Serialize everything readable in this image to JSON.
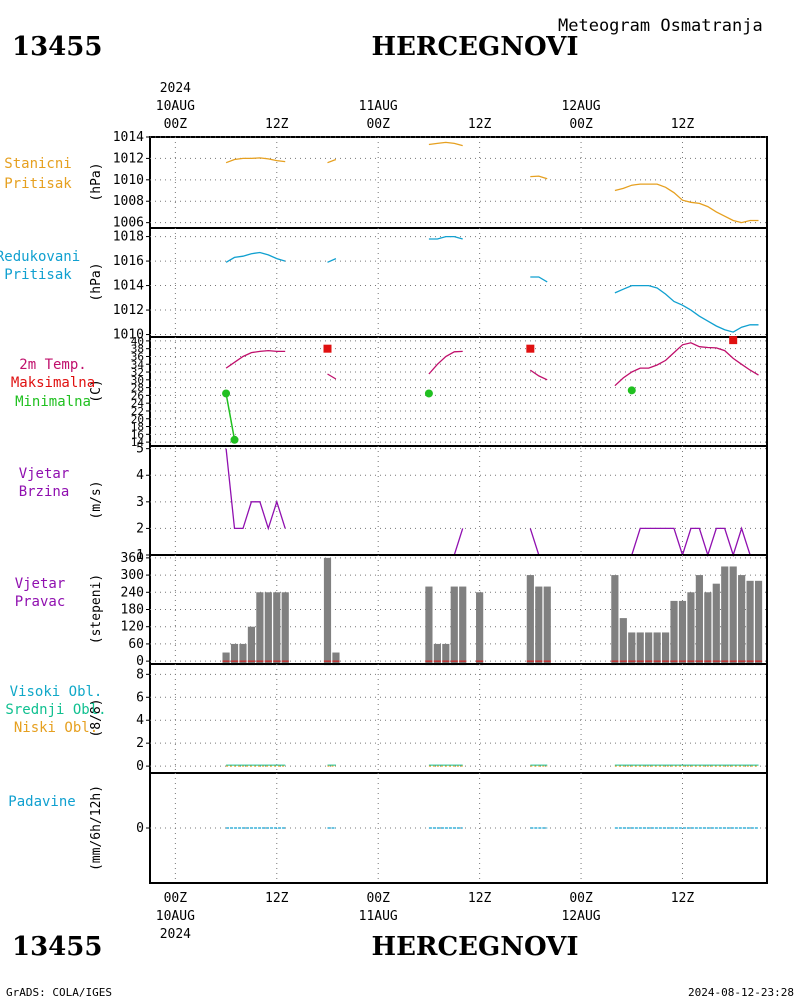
{
  "header": {
    "station_id": "13455",
    "station_name": "HERCEGNOVI",
    "chart_title": "Meteogram Osmatranja"
  },
  "footer": {
    "credit": "GrADS: COLA/IGES",
    "timestamp": "2024-08-12-23:28"
  },
  "time_axis": {
    "top_year": "2024",
    "bottom_year": "2024",
    "dates": [
      "10AUG",
      "11AUG",
      "12AUG"
    ],
    "hour_labels": [
      "00Z",
      "12Z",
      "00Z",
      "12Z",
      "00Z",
      "12Z"
    ],
    "range_hours": [
      -3,
      70
    ]
  },
  "colors": {
    "pressure_station": "#e6a020",
    "pressure_reduced": "#10a0d0",
    "temp_line": "#c0106c",
    "temp_max": "#e01010",
    "temp_min": "#20c020",
    "wind": "#9010b0",
    "wind_dir_bar": "#808080",
    "clouds_high": "#10a8c8",
    "clouds_mid": "#10c090",
    "clouds_low": "#e6a020",
    "precip": "#10a0d0"
  },
  "chart_data": [
    {
      "type": "line",
      "panel": "station_pressure",
      "label_lines": [
        "Stanicni",
        "Pritisak"
      ],
      "ylabel": "(hPa)",
      "ylim": [
        1005.5,
        1014
      ],
      "yticks": [
        1006,
        1008,
        1010,
        1012,
        1014
      ],
      "segments": [
        {
          "x": [
            6,
            7,
            8,
            9,
            10,
            11,
            12,
            13
          ],
          "y": [
            1011.6,
            1011.9,
            1012,
            1012,
            1012.05,
            1011.95,
            1011.8,
            1011.7
          ]
        },
        {
          "x": [
            18,
            19
          ],
          "y": [
            1011.6,
            1011.9
          ]
        },
        {
          "x": [
            30,
            31,
            32,
            33,
            34
          ],
          "y": [
            1013.3,
            1013.4,
            1013.5,
            1013.4,
            1013.2
          ]
        },
        {
          "x": [
            42,
            43,
            44
          ],
          "y": [
            1010.3,
            1010.35,
            1010.1
          ]
        },
        {
          "x": [
            52,
            53,
            54,
            55,
            56,
            57,
            58,
            59,
            60,
            61,
            62,
            63,
            64,
            65,
            66,
            67,
            68,
            69
          ],
          "y": [
            1009.0,
            1009.2,
            1009.5,
            1009.6,
            1009.6,
            1009.6,
            1009.3,
            1008.8,
            1008.1,
            1007.9,
            1007.8,
            1007.5,
            1007.0,
            1006.6,
            1006.2,
            1006.0,
            1006.2,
            1006.2
          ]
        }
      ]
    },
    {
      "type": "line",
      "panel": "reduced_pressure",
      "label_lines": [
        "Redukovani",
        "Pritisak"
      ],
      "ylabel": "(hPa)",
      "ylim": [
        1009.8,
        1018.7
      ],
      "yticks": [
        1010,
        1012,
        1014,
        1016,
        1018
      ],
      "segments": [
        {
          "x": [
            6,
            7,
            8,
            9,
            10,
            11,
            12,
            13
          ],
          "y": [
            1015.9,
            1016.3,
            1016.4,
            1016.6,
            1016.7,
            1016.5,
            1016.2,
            1016.0
          ]
        },
        {
          "x": [
            18,
            19
          ],
          "y": [
            1015.9,
            1016.2
          ]
        },
        {
          "x": [
            30,
            31,
            32,
            33,
            34
          ],
          "y": [
            1017.8,
            1017.8,
            1018.0,
            1018.0,
            1017.8
          ]
        },
        {
          "x": [
            42,
            43,
            44
          ],
          "y": [
            1014.7,
            1014.7,
            1014.3
          ]
        },
        {
          "x": [
            52,
            53,
            54,
            55,
            56,
            57,
            58,
            59,
            60,
            61,
            62,
            63,
            64,
            65,
            66,
            67,
            68,
            69
          ],
          "y": [
            1013.4,
            1013.7,
            1014.0,
            1014.0,
            1014.0,
            1013.8,
            1013.3,
            1012.7,
            1012.4,
            1012.0,
            1011.5,
            1011.1,
            1010.7,
            1010.4,
            1010.2,
            1010.6,
            1010.8,
            1010.8
          ]
        }
      ]
    },
    {
      "type": "line",
      "panel": "temperature",
      "label_lines": [
        "2m Temp.",
        "Maksimalna",
        "Minimalna"
      ],
      "ylabel": "(C)",
      "ylim": [
        13,
        41
      ],
      "yticks": [
        14,
        16,
        18,
        20,
        22,
        24,
        26,
        28,
        30,
        32,
        34,
        36,
        38,
        40
      ],
      "ytick_labels": [
        "14",
        "16",
        "18",
        "20",
        "22",
        "24",
        "26",
        "28",
        "30",
        "32",
        "34",
        "36",
        "38",
        "40"
      ],
      "segments": [
        {
          "x": [
            6,
            7,
            8,
            9,
            10,
            11,
            12,
            13
          ],
          "y": [
            33,
            34.5,
            36,
            37,
            37.3,
            37.5,
            37.3,
            37.3
          ]
        },
        {
          "x": [
            18,
            19
          ],
          "y": [
            31.5,
            30.2
          ]
        },
        {
          "x": [
            30,
            31,
            32,
            33,
            34
          ],
          "y": [
            31.5,
            34,
            36,
            37.2,
            37.3
          ]
        },
        {
          "x": [
            42,
            43,
            44
          ],
          "y": [
            32.5,
            31.0,
            30.0
          ]
        },
        {
          "x": [
            52,
            53,
            54,
            55,
            56,
            57,
            58,
            59,
            60,
            61,
            62,
            63,
            64,
            65,
            66,
            67,
            68,
            69
          ],
          "y": [
            28.5,
            30.5,
            32,
            33,
            33,
            33.8,
            35,
            37,
            39,
            39.5,
            38.5,
            38.3,
            38.2,
            37.5,
            35.5,
            34,
            32.5,
            31.2
          ]
        }
      ],
      "max_points": {
        "x": [
          18,
          42,
          66
        ],
        "y": [
          38,
          38,
          40.2
        ]
      },
      "min_points": {
        "x": [
          6,
          7,
          30,
          54
        ],
        "y": [
          26.5,
          14.6,
          26.5,
          27.3
        ]
      },
      "min_links": [
        [
          0,
          1
        ]
      ]
    },
    {
      "type": "line",
      "panel": "wind_speed",
      "label_lines": [
        "Vjetar",
        "Brzina"
      ],
      "ylabel": "(m/s)",
      "ylim": [
        1,
        5.1
      ],
      "yticks": [
        1,
        2,
        3,
        4,
        5
      ],
      "segments": [
        {
          "x": [
            6,
            7,
            8,
            9,
            10,
            11,
            12,
            13
          ],
          "y": [
            5,
            2,
            2,
            3,
            3,
            2,
            3,
            2
          ]
        },
        {
          "x": [
            18,
            19
          ],
          "y": [
            1,
            1
          ]
        },
        {
          "x": [
            30,
            31,
            32,
            33,
            34
          ],
          "y": [
            1,
            1,
            1,
            1,
            2
          ]
        },
        {
          "x": [
            42,
            43,
            44
          ],
          "y": [
            2,
            1,
            1
          ]
        },
        {
          "x": [
            52,
            53,
            54,
            55,
            56,
            57,
            58,
            59,
            60,
            61,
            62,
            63,
            64,
            65,
            66,
            67,
            68,
            69
          ],
          "y": [
            1,
            1,
            1,
            2,
            2,
            2,
            2,
            2,
            1,
            2,
            2,
            1,
            2,
            2,
            1,
            2,
            1,
            1
          ]
        }
      ]
    },
    {
      "type": "bar",
      "panel": "wind_direction",
      "label_lines": [
        "Vjetar",
        "Pravac"
      ],
      "ylabel": "(stepeni)",
      "ylim": [
        -10,
        370
      ],
      "yticks": [
        0,
        60,
        120,
        180,
        240,
        300,
        360
      ],
      "x": [
        6,
        7,
        8,
        9,
        10,
        11,
        12,
        13,
        18,
        19,
        30,
        31,
        32,
        33,
        34,
        36,
        42,
        43,
        44,
        52,
        53,
        54,
        55,
        56,
        57,
        58,
        59,
        60,
        61,
        62,
        63,
        64,
        65,
        66,
        67,
        68,
        69
      ],
      "values": [
        30,
        60,
        60,
        120,
        240,
        240,
        240,
        240,
        360,
        30,
        260,
        60,
        60,
        260,
        260,
        240,
        300,
        260,
        260,
        300,
        150,
        100,
        100,
        100,
        100,
        100,
        210,
        210,
        240,
        300,
        240,
        270,
        330,
        330,
        300,
        280,
        280
      ]
    },
    {
      "type": "bar",
      "panel": "clouds",
      "label_lines": [
        "Visoki Obl.",
        "Srednji Obl.",
        "Niski Obl."
      ],
      "ylabel": "(8/8)",
      "ylim": [
        -0.6,
        8.9
      ],
      "yticks": [
        0,
        2,
        4,
        6,
        8
      ],
      "x": [
        6,
        13,
        18,
        19,
        30,
        34,
        42,
        44,
        52,
        69
      ],
      "values": [
        0,
        0,
        0,
        0,
        0,
        0,
        0,
        0,
        0,
        0
      ]
    },
    {
      "type": "bar",
      "panel": "precipitation",
      "label_lines": [
        "Padavine"
      ],
      "ylabel": "(mm/6h/12h)",
      "ylim": [
        -1,
        1
      ],
      "yticks": [
        0
      ],
      "x": [
        6,
        13,
        18,
        19,
        30,
        34,
        42,
        44,
        52,
        69
      ],
      "values": [
        0,
        0,
        0,
        0,
        0,
        0,
        0,
        0,
        0,
        0
      ]
    }
  ]
}
